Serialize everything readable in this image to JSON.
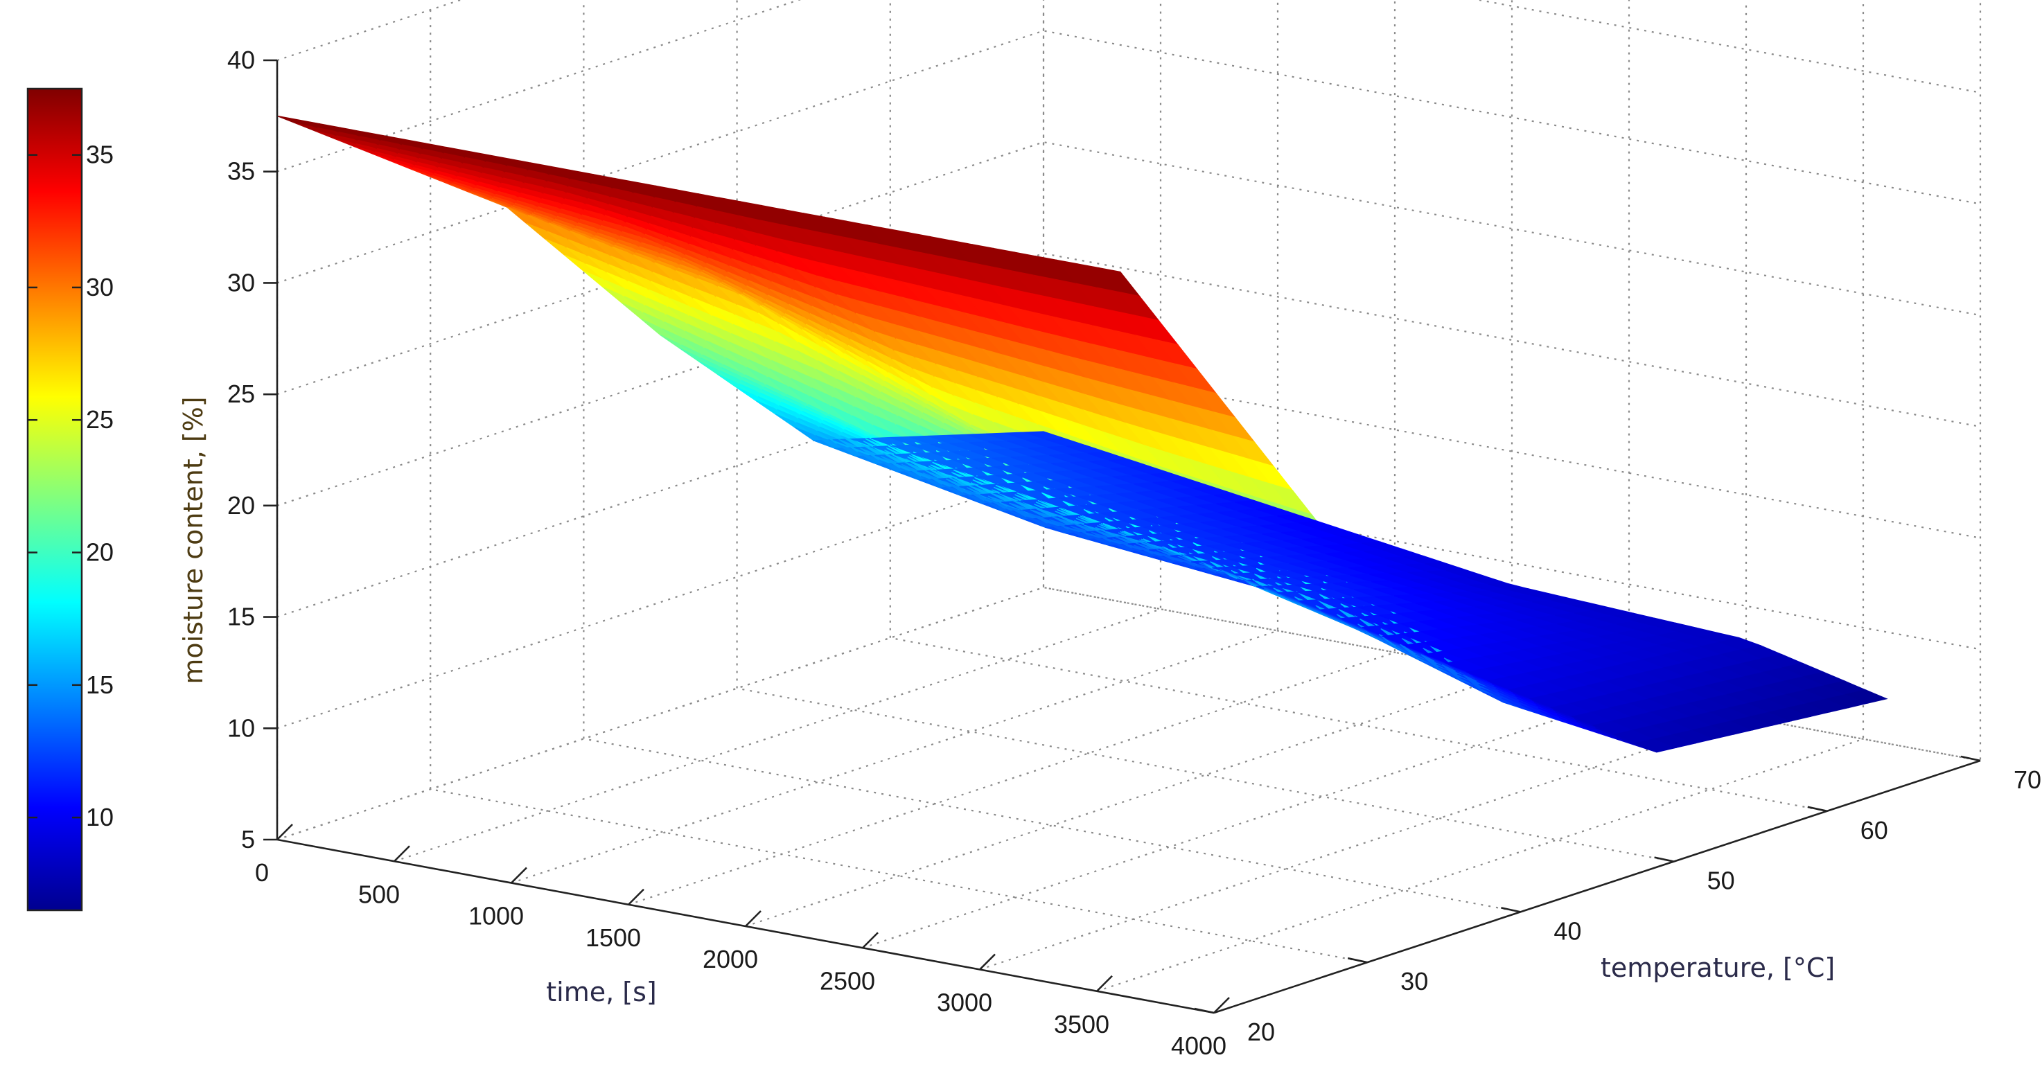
{
  "chart_data": {
    "type": "surface",
    "title": "",
    "xlabel": "time, [s]",
    "ylabel": "temperature, [°C]",
    "zlabel": "moisture content, [%]",
    "x_ticks": [
      0,
      500,
      1000,
      1500,
      2000,
      2500,
      3000,
      3500,
      4000
    ],
    "y_ticks": [
      20,
      30,
      40,
      50,
      60,
      70
    ],
    "z_ticks": [
      5,
      10,
      15,
      20,
      25,
      30,
      35,
      40
    ],
    "xlim": [
      0,
      4000
    ],
    "ylim": [
      20,
      70
    ],
    "zlim": [
      5,
      40
    ],
    "grid": true,
    "colormap": "jet",
    "colorbar": {
      "ticks": [
        10,
        15,
        20,
        25,
        30,
        35
      ],
      "range": [
        6.5,
        37.5
      ]
    },
    "x": [
      0,
      1000,
      2000,
      3000,
      3600
    ],
    "y": [
      20,
      35,
      45,
      55,
      70
    ],
    "z": [
      [
        37.5,
        37.5,
        37.5,
        37.5,
        37.5
      ],
      [
        30.0,
        28.0,
        24.0,
        22.0,
        21.0
      ],
      [
        22.0,
        19.0,
        17.0,
        14.5,
        12.5
      ],
      [
        15.0,
        13.0,
        12.0,
        9.5,
        8.0
      ],
      [
        12.0,
        10.5,
        9.0,
        8.5,
        7.0
      ]
    ]
  }
}
